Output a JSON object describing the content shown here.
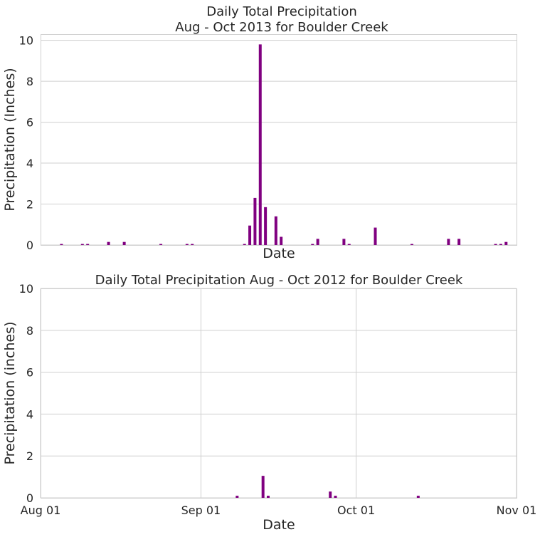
{
  "chart_data": [
    {
      "type": "bar",
      "title": "Daily Total Precipitation",
      "subtitle": "Aug - Oct 2013 for Boulder Creek",
      "xlabel": "Date",
      "ylabel": "Precipitation (Inches)",
      "ylim": [
        0,
        10.3
      ],
      "yticks": [
        "0",
        "2",
        "4",
        "6",
        "8",
        "10"
      ],
      "xlim": [
        "2013-08-01",
        "2013-10-31"
      ],
      "xticks": [],
      "grid": "horizontal",
      "bar_color": "#800080",
      "x": [
        "2013-08-05",
        "2013-08-09",
        "2013-08-10",
        "2013-08-14",
        "2013-08-17",
        "2013-08-24",
        "2013-08-29",
        "2013-08-30",
        "2013-09-09",
        "2013-09-10",
        "2013-09-11",
        "2013-09-12",
        "2013-09-13",
        "2013-09-15",
        "2013-09-16",
        "2013-09-22",
        "2013-09-23",
        "2013-09-28",
        "2013-09-29",
        "2013-10-04",
        "2013-10-11",
        "2013-10-18",
        "2013-10-20",
        "2013-10-27",
        "2013-10-28",
        "2013-10-29"
      ],
      "values": [
        0.05,
        0.05,
        0.05,
        0.15,
        0.15,
        0.05,
        0.05,
        0.05,
        0.05,
        0.95,
        2.3,
        9.8,
        1.85,
        1.4,
        0.4,
        0.05,
        0.3,
        0.3,
        0.05,
        0.85,
        0.05,
        0.3,
        0.3,
        0.05,
        0.05,
        0.15
      ]
    },
    {
      "type": "bar",
      "title": "Daily Total Precipitation Aug - Oct 2012 for Boulder Creek",
      "xlabel": "Date",
      "ylabel": "Precipitation (inches)",
      "ylim": [
        0,
        10
      ],
      "yticks": [
        "0",
        "2",
        "4",
        "6",
        "8",
        "10"
      ],
      "xlim": [
        "2012-08-01",
        "2012-11-01"
      ],
      "xticks": [
        {
          "date": "2012-08-01",
          "label": "Aug 01"
        },
        {
          "date": "2012-09-01",
          "label": "Sep 01"
        },
        {
          "date": "2012-10-01",
          "label": "Oct 01"
        },
        {
          "date": "2012-11-01",
          "label": "Nov 01"
        }
      ],
      "grid": "both",
      "bar_color": "#800080",
      "x": [
        "2012-09-08",
        "2012-09-13",
        "2012-09-14",
        "2012-09-26",
        "2012-09-27",
        "2012-10-13"
      ],
      "values": [
        0.1,
        1.05,
        0.1,
        0.3,
        0.1,
        0.1
      ]
    }
  ]
}
